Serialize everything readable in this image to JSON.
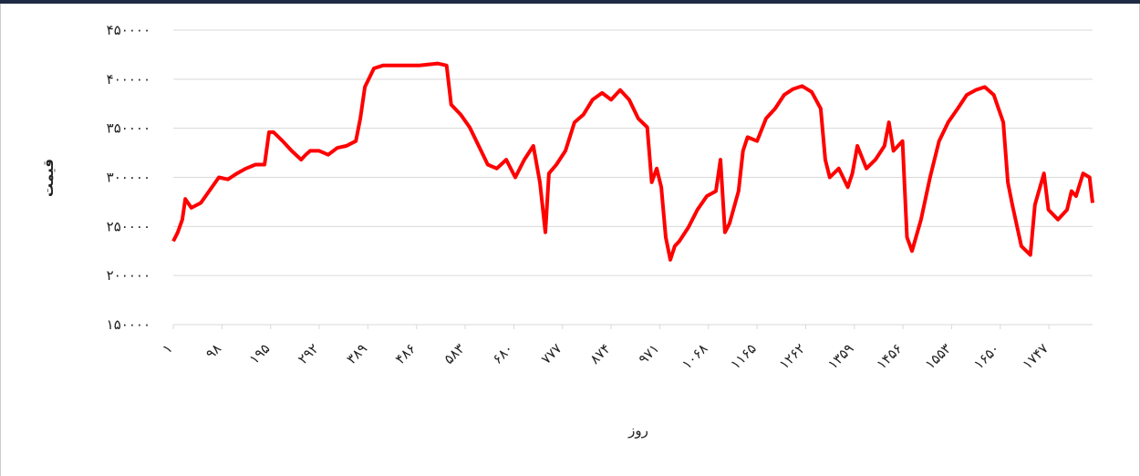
{
  "chart_data": {
    "type": "line",
    "x_label": "روز",
    "y_label": "قیمت",
    "xlim": [
      1,
      1834
    ],
    "xticks": [
      {
        "value": 1,
        "label": "۱"
      },
      {
        "value": 98,
        "label": "۹۸"
      },
      {
        "value": 195,
        "label": "۱۹۵"
      },
      {
        "value": 292,
        "label": "۲۹۲"
      },
      {
        "value": 389,
        "label": "۳۸۹"
      },
      {
        "value": 486,
        "label": "۴۸۶"
      },
      {
        "value": 583,
        "label": "۵۸۳"
      },
      {
        "value": 680,
        "label": "۶۸۰"
      },
      {
        "value": 777,
        "label": "۷۷۷"
      },
      {
        "value": 874,
        "label": "۸۷۴"
      },
      {
        "value": 971,
        "label": "۹۷۱"
      },
      {
        "value": 1068,
        "label": "۱۰۶۸"
      },
      {
        "value": 1165,
        "label": "۱۱۶۵"
      },
      {
        "value": 1262,
        "label": "۱۲۶۲"
      },
      {
        "value": 1359,
        "label": "۱۳۵۹"
      },
      {
        "value": 1456,
        "label": "۱۴۵۶"
      },
      {
        "value": 1553,
        "label": "۱۵۵۳"
      },
      {
        "value": 1650,
        "label": "۱۶۵۰"
      },
      {
        "value": 1747,
        "label": "۱۷۴۷"
      }
    ],
    "ylim": [
      150000,
      450000
    ],
    "yticks": [
      {
        "value": 150000,
        "label": "۱۵۰۰۰۰"
      },
      {
        "value": 200000,
        "label": "۲۰۰۰۰۰"
      },
      {
        "value": 250000,
        "label": "۲۵۰۰۰۰"
      },
      {
        "value": 300000,
        "label": "۳۰۰۰۰۰"
      },
      {
        "value": 350000,
        "label": "۳۵۰۰۰۰"
      },
      {
        "value": 400000,
        "label": "۴۰۰۰۰۰"
      },
      {
        "value": 450000,
        "label": "۴۵۰۰۰۰"
      }
    ],
    "grid": true,
    "series": [
      {
        "color": "#ff0000",
        "x": [
          1,
          10,
          19,
          25,
          37,
          56,
          74,
          92,
          110,
          128,
          146,
          165,
          183,
          192,
          201,
          219,
          237,
          256,
          265,
          274,
          292,
          310,
          328,
          346,
          365,
          374,
          383,
          401,
          419,
          456,
          492,
          528,
          546,
          555,
          574,
          592,
          610,
          628,
          646,
          665,
          683,
          701,
          719,
          732,
          743,
          750,
          765,
          783,
          801,
          819,
          837,
          856,
          874,
          892,
          910,
          928,
          946,
          955,
          965,
          974,
          983,
          992,
          1001,
          1010,
          1028,
          1046,
          1065,
          1083,
          1092,
          1101,
          1110,
          1128,
          1137,
          1146,
          1165,
          1183,
          1201,
          1219,
          1237,
          1255,
          1274,
          1292,
          1301,
          1310,
          1328,
          1346,
          1355,
          1365,
          1383,
          1401,
          1419,
          1428,
          1437,
          1455,
          1464,
          1474,
          1492,
          1510,
          1528,
          1546,
          1565,
          1583,
          1601,
          1619,
          1637,
          1656,
          1665,
          1674,
          1692,
          1710,
          1719,
          1737,
          1746,
          1765,
          1783,
          1792,
          1801,
          1815,
          1828,
          1834
        ],
        "values": [
          235000,
          244000,
          257000,
          278000,
          269000,
          274000,
          287000,
          300000,
          298000,
          304000,
          309000,
          313000,
          313000,
          346000,
          346000,
          337000,
          327000,
          318000,
          323000,
          327000,
          327000,
          323000,
          330000,
          332000,
          337000,
          360000,
          392000,
          411000,
          414000,
          414000,
          414000,
          416000,
          414000,
          374000,
          364000,
          351000,
          332000,
          313000,
          309000,
          318000,
          300000,
          318000,
          332000,
          295000,
          244000,
          304000,
          313000,
          327000,
          356000,
          364000,
          379000,
          386000,
          379000,
          389000,
          379000,
          360000,
          351000,
          295000,
          309000,
          290000,
          239000,
          216000,
          230000,
          235000,
          249000,
          267000,
          281000,
          286000,
          318000,
          244000,
          253000,
          286000,
          327000,
          341000,
          337000,
          360000,
          370000,
          384000,
          390000,
          393000,
          387000,
          370000,
          318000,
          300000,
          309000,
          290000,
          304000,
          332000,
          309000,
          318000,
          332000,
          356000,
          327000,
          337000,
          239000,
          225000,
          257000,
          300000,
          337000,
          356000,
          370000,
          384000,
          389000,
          392000,
          384000,
          356000,
          295000,
          272000,
          230000,
          221000,
          272000,
          304000,
          267000,
          257000,
          267000,
          286000,
          281000,
          304000,
          300000,
          274000
        ]
      }
    ]
  }
}
